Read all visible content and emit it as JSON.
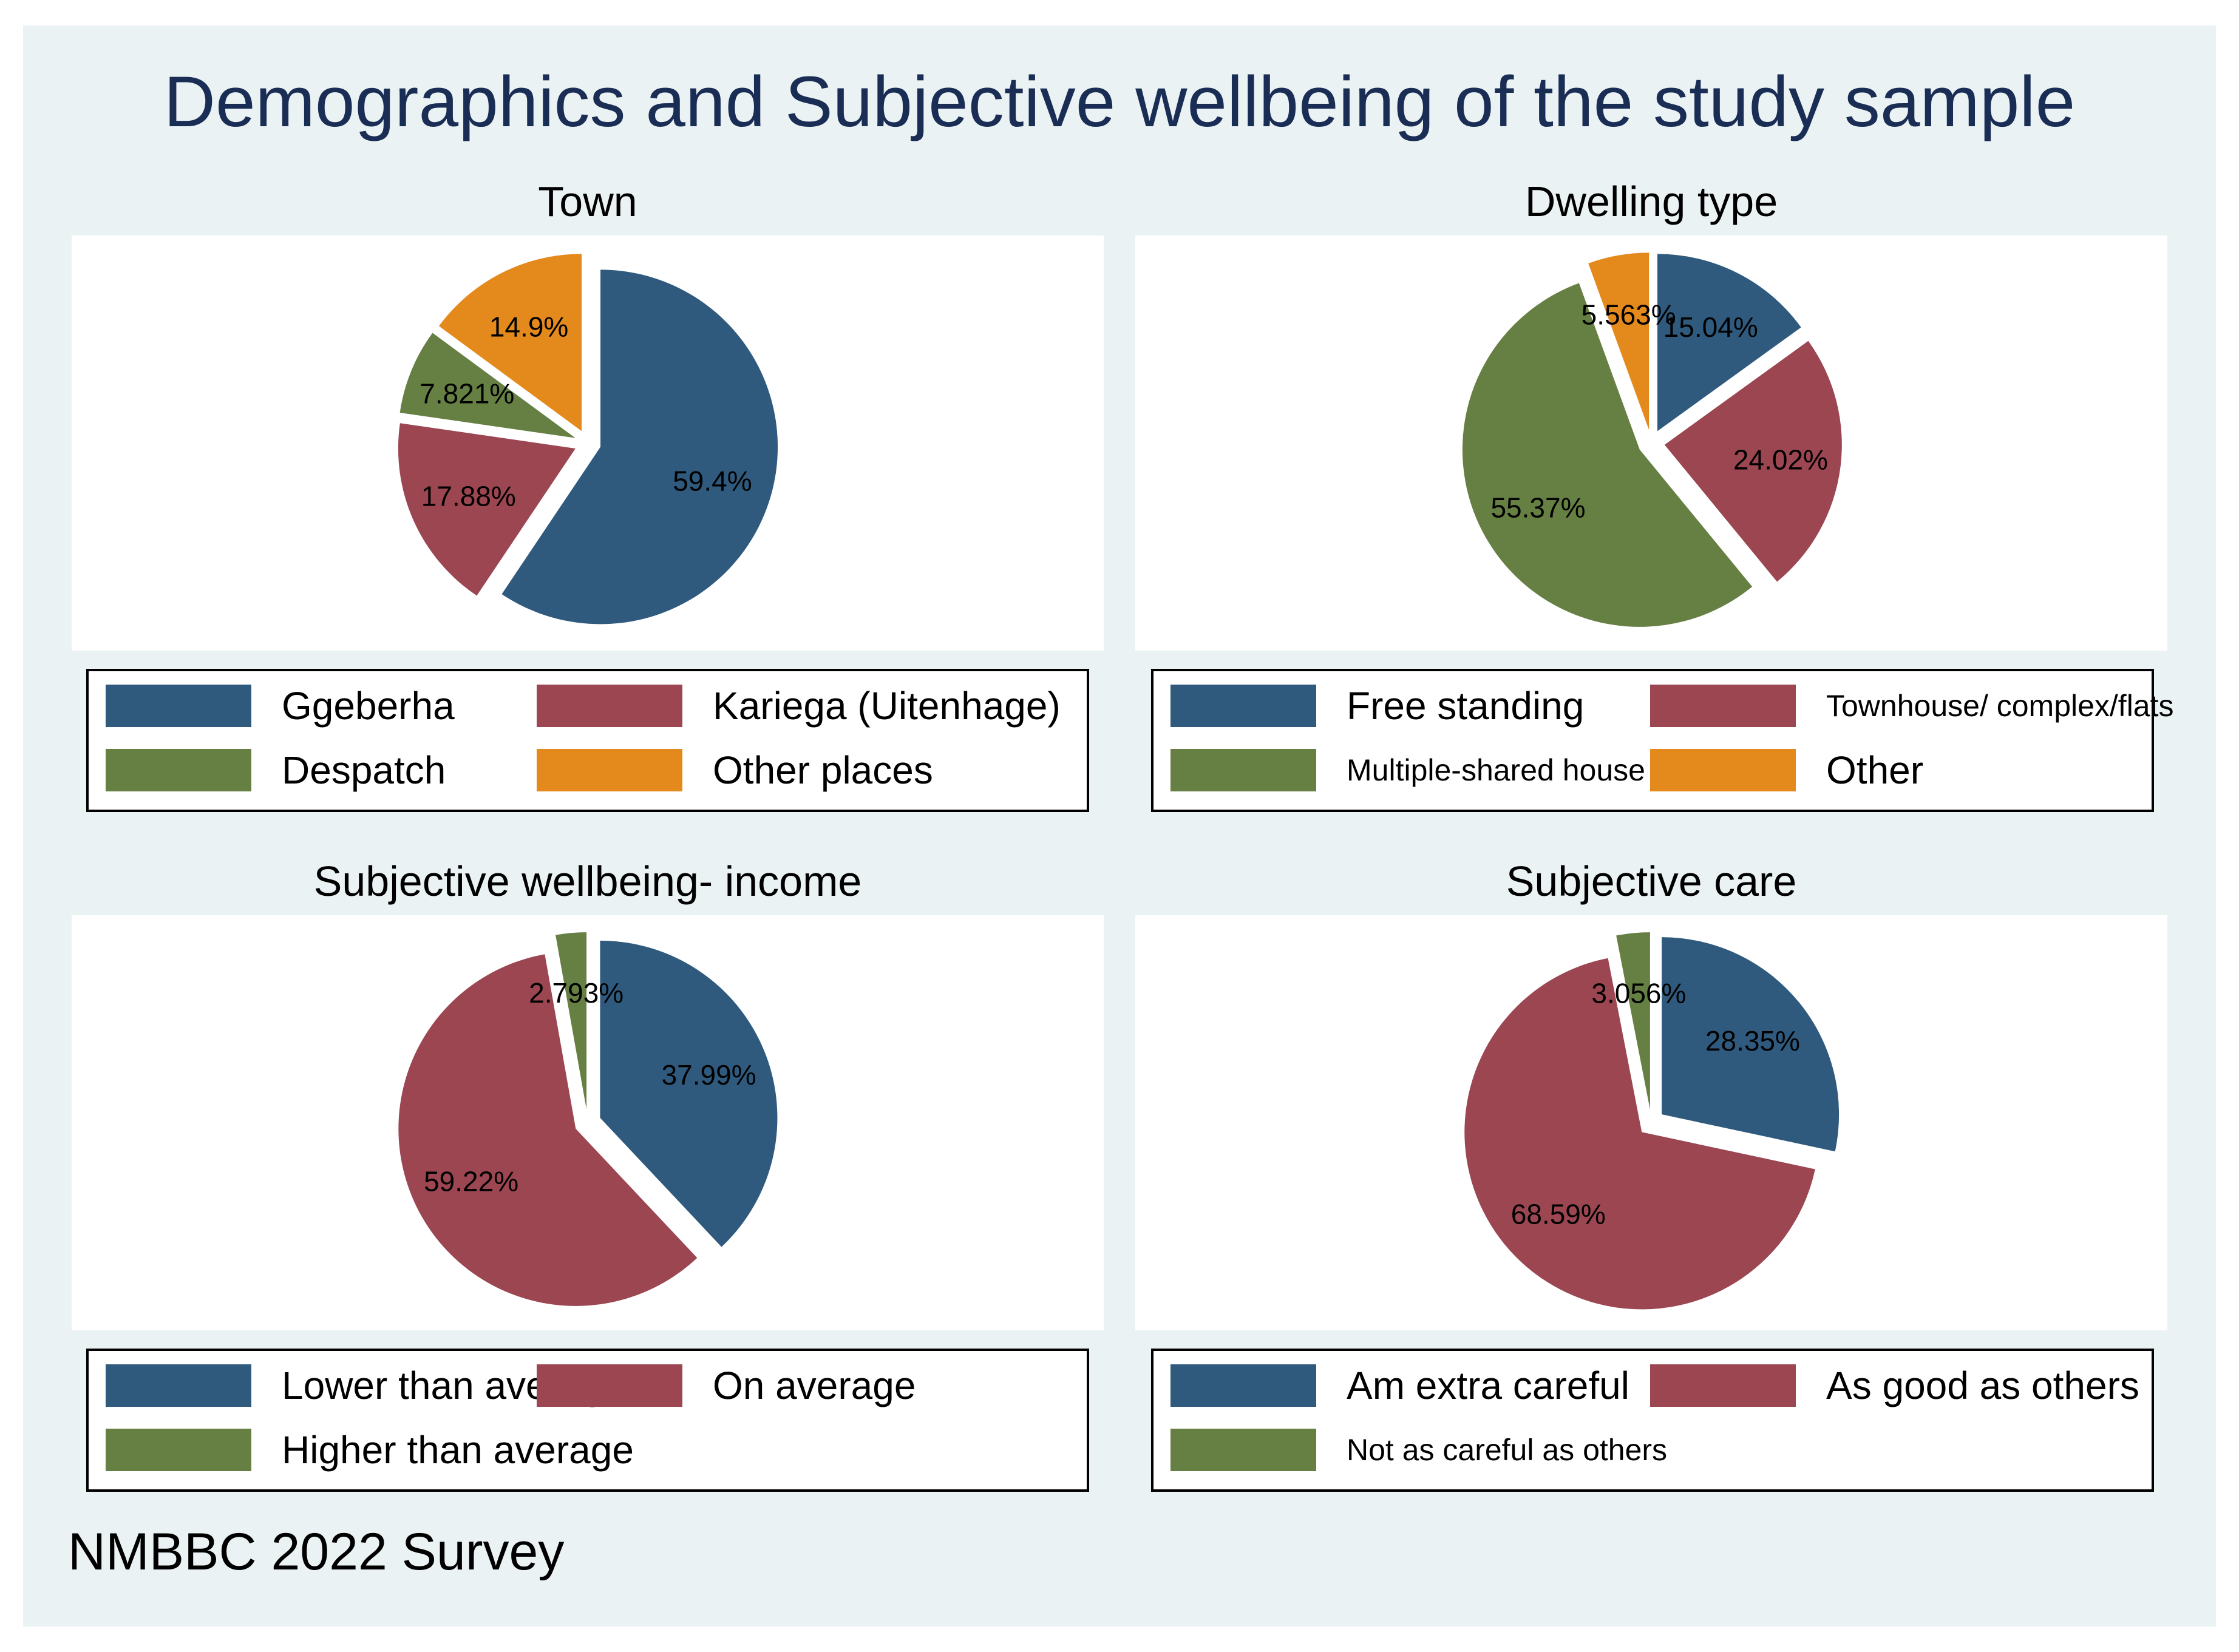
{
  "title": "Demographics and Subjective wellbeing of the study sample",
  "note": "NMBBC 2022 Survey",
  "colors": {
    "background": "#eaf2f3",
    "title": "#1a2d55",
    "blue": "#2f5a7d",
    "red": "#9b4651",
    "green": "#667f42",
    "orange": "#e48a1c"
  },
  "chart_data": [
    {
      "type": "pie",
      "title": "Town",
      "labels": [
        "Ggeberha",
        "Kariega (Uitenhage)",
        "Despatch",
        "Other places"
      ],
      "values": [
        59.4,
        17.88,
        7.821,
        14.9
      ],
      "value_labels": [
        "59.4%",
        "17.88%",
        "7.821%",
        "14.9%"
      ],
      "colors": [
        "#2f5a7d",
        "#9b4651",
        "#667f42",
        "#e48a1c"
      ],
      "exploded": [
        true,
        true,
        true,
        true
      ],
      "legend_columns": 2
    },
    {
      "type": "pie",
      "title": "Dwelling type",
      "labels": [
        "Free standing",
        "Townhouse/ complex/flats",
        "Multiple-shared house",
        "Other"
      ],
      "values": [
        15.04,
        24.02,
        55.37,
        5.563
      ],
      "value_labels": [
        "15.04%",
        "24.02%",
        "55.37%",
        "5.563%"
      ],
      "colors": [
        "#2f5a7d",
        "#9b4651",
        "#667f42",
        "#e48a1c"
      ],
      "exploded": [
        true,
        true,
        true,
        true
      ],
      "legend_columns": 2
    },
    {
      "type": "pie",
      "title": "Subjective wellbeing- income",
      "labels": [
        "Lower than average",
        "On average",
        "Higher than average"
      ],
      "values": [
        37.99,
        59.22,
        2.793
      ],
      "value_labels": [
        "37.99%",
        "59.22%",
        "2.793%"
      ],
      "colors": [
        "#2f5a7d",
        "#9b4651",
        "#667f42"
      ],
      "exploded": [
        true,
        true,
        true
      ],
      "legend_columns": 2
    },
    {
      "type": "pie",
      "title": "Subjective care",
      "labels": [
        "Am extra careful",
        "As good as others",
        "Not as careful as others"
      ],
      "values": [
        28.35,
        68.59,
        3.056
      ],
      "value_labels": [
        "28.35%",
        "68.59%",
        "3.056%"
      ],
      "colors": [
        "#2f5a7d",
        "#9b4651",
        "#667f42"
      ],
      "exploded": [
        true,
        true,
        true
      ],
      "legend_columns": 2
    }
  ]
}
